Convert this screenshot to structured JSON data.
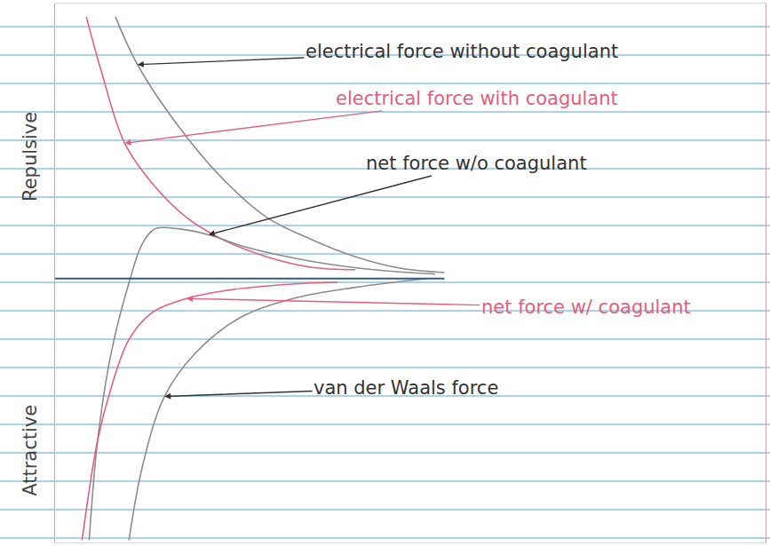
{
  "chart_data": {
    "type": "line",
    "line_style": "smooth",
    "grid": false,
    "tick_labels": false,
    "xlim": [
      0,
      10
    ],
    "ylim": [
      -9.6,
      10
    ],
    "xticks": [],
    "yticks": [],
    "axis_labels": {
      "positive": "Repulsive",
      "negative": "Attractive"
    },
    "series": [
      {
        "name": "electrical force without coagulant",
        "color": "#8c8c8c",
        "x": [
          0.85,
          1.16,
          1.73,
          2.35,
          2.98,
          3.6,
          4.23,
          4.85,
          5.48
        ],
        "values": [
          9.52,
          7.78,
          5.56,
          3.65,
          2.22,
          1.43,
          0.79,
          0.38,
          0.22
        ]
      },
      {
        "name": "electrical force with coagulant",
        "color": "#e0607e",
        "x": [
          0.44,
          0.66,
          0.98,
          1.41,
          1.85,
          2.35,
          2.98,
          3.6,
          4.23
        ],
        "values": [
          9.52,
          7.46,
          4.92,
          3.33,
          2.22,
          1.43,
          0.79,
          0.41,
          0.32
        ]
      },
      {
        "name": "net force w/o coagulant",
        "color": "#8c8c8c",
        "x": [
          0.48,
          0.6,
          0.79,
          1.04,
          1.23,
          1.41,
          1.73,
          2.16,
          2.73,
          3.6,
          4.48,
          5.35
        ],
        "values": [
          -9.52,
          -5.87,
          -2.7,
          -0.16,
          1.27,
          1.81,
          1.81,
          1.59,
          1.11,
          0.63,
          0.32,
          0.16
        ]
      },
      {
        "name": "net force w/ coagulant",
        "color": "#e0607e",
        "x": [
          0.38,
          0.6,
          0.79,
          1.04,
          1.35,
          1.85,
          2.48,
          3.23,
          3.98
        ],
        "values": [
          -9.52,
          -5.87,
          -3.97,
          -2.22,
          -1.27,
          -0.73,
          -0.41,
          -0.22,
          -0.13
        ]
      },
      {
        "name": "van der Waals force",
        "color": "#8c8c8c",
        "x": [
          1.04,
          1.23,
          1.54,
          1.98,
          2.6,
          3.35,
          4.23,
          5.23
        ],
        "values": [
          -9.52,
          -6.83,
          -4.29,
          -2.7,
          -1.43,
          -0.73,
          -0.32,
          0
        ]
      }
    ]
  }
}
